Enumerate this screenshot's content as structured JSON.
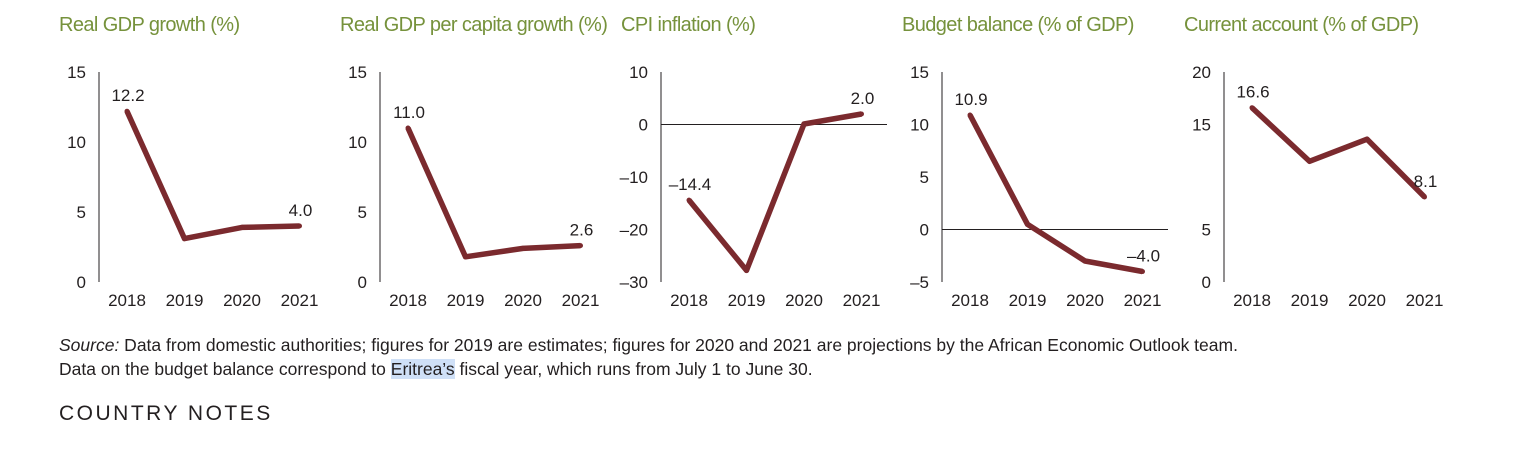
{
  "colors": {
    "title": "#76923c",
    "line": "#7b2a2e",
    "axis": "#231f20",
    "highlight": "#cfe0f7"
  },
  "chart_data": [
    {
      "type": "line",
      "title": "Real GDP growth (%)",
      "x": [
        "2018",
        "2019",
        "2020",
        "2021"
      ],
      "values": [
        12.2,
        3.1,
        3.9,
        4.0
      ],
      "ylim": [
        0,
        15
      ],
      "yticks": [
        0,
        5,
        10,
        15
      ],
      "yticklabels": [
        "0",
        "5",
        "10",
        "15"
      ],
      "data_labels": {
        "0": "12.2",
        "3": "4.0"
      }
    },
    {
      "type": "line",
      "title": "Real GDP per capita growth (%)",
      "x": [
        "2018",
        "2019",
        "2020",
        "2021"
      ],
      "values": [
        11.0,
        1.8,
        2.4,
        2.6
      ],
      "ylim": [
        0,
        15
      ],
      "yticks": [
        0,
        5,
        10,
        15
      ],
      "yticklabels": [
        "0",
        "5",
        "10",
        "15"
      ],
      "data_labels": {
        "0": "11.0",
        "3": "2.6"
      }
    },
    {
      "type": "line",
      "title": "CPI inflation (%)",
      "x": [
        "2018",
        "2019",
        "2020",
        "2021"
      ],
      "values": [
        -14.4,
        -27.8,
        0.1,
        2.0
      ],
      "ylim": [
        -30,
        10
      ],
      "yticks": [
        -30,
        -20,
        -10,
        0,
        10
      ],
      "yticklabels": [
        "–30",
        "–20",
        "–10",
        "0",
        "10"
      ],
      "zero_line": true,
      "data_labels": {
        "0": "–14.4",
        "3": "2.0"
      }
    },
    {
      "type": "line",
      "title": "Budget balance (% of GDP)",
      "x": [
        "2018",
        "2019",
        "2020",
        "2021"
      ],
      "values": [
        10.9,
        0.5,
        -3.0,
        -4.0
      ],
      "ylim": [
        -5,
        15
      ],
      "yticks": [
        -5,
        0,
        5,
        10,
        15
      ],
      "yticklabels": [
        "–5",
        "0",
        "5",
        "10",
        "15"
      ],
      "zero_line": true,
      "data_labels": {
        "0": "10.9",
        "3": "–4.0"
      }
    },
    {
      "type": "line",
      "title": "Current account (% of GDP)",
      "x": [
        "2018",
        "2019",
        "2020",
        "2021"
      ],
      "values": [
        16.6,
        11.5,
        13.6,
        8.1
      ],
      "ylim": [
        0,
        20
      ],
      "yticks": [
        0,
        5,
        15,
        20
      ],
      "yticklabels": [
        "0",
        "5",
        "15",
        "20"
      ],
      "data_labels": {
        "0": "16.6",
        "3": "8.1"
      }
    }
  ],
  "source": {
    "lead": "Source:",
    "line1": " Data from domestic authorities; figures for 2019 are estimates; figures for 2020 and 2021 are projections by the African Economic Outlook team.",
    "line2_pre": "Data on the budget balance correspond to ",
    "line2_highlight": "Eritrea’s",
    "line2_post": " fiscal year, which runs from July 1 to June 30."
  },
  "section_heading": "COUNTRY NOTES"
}
